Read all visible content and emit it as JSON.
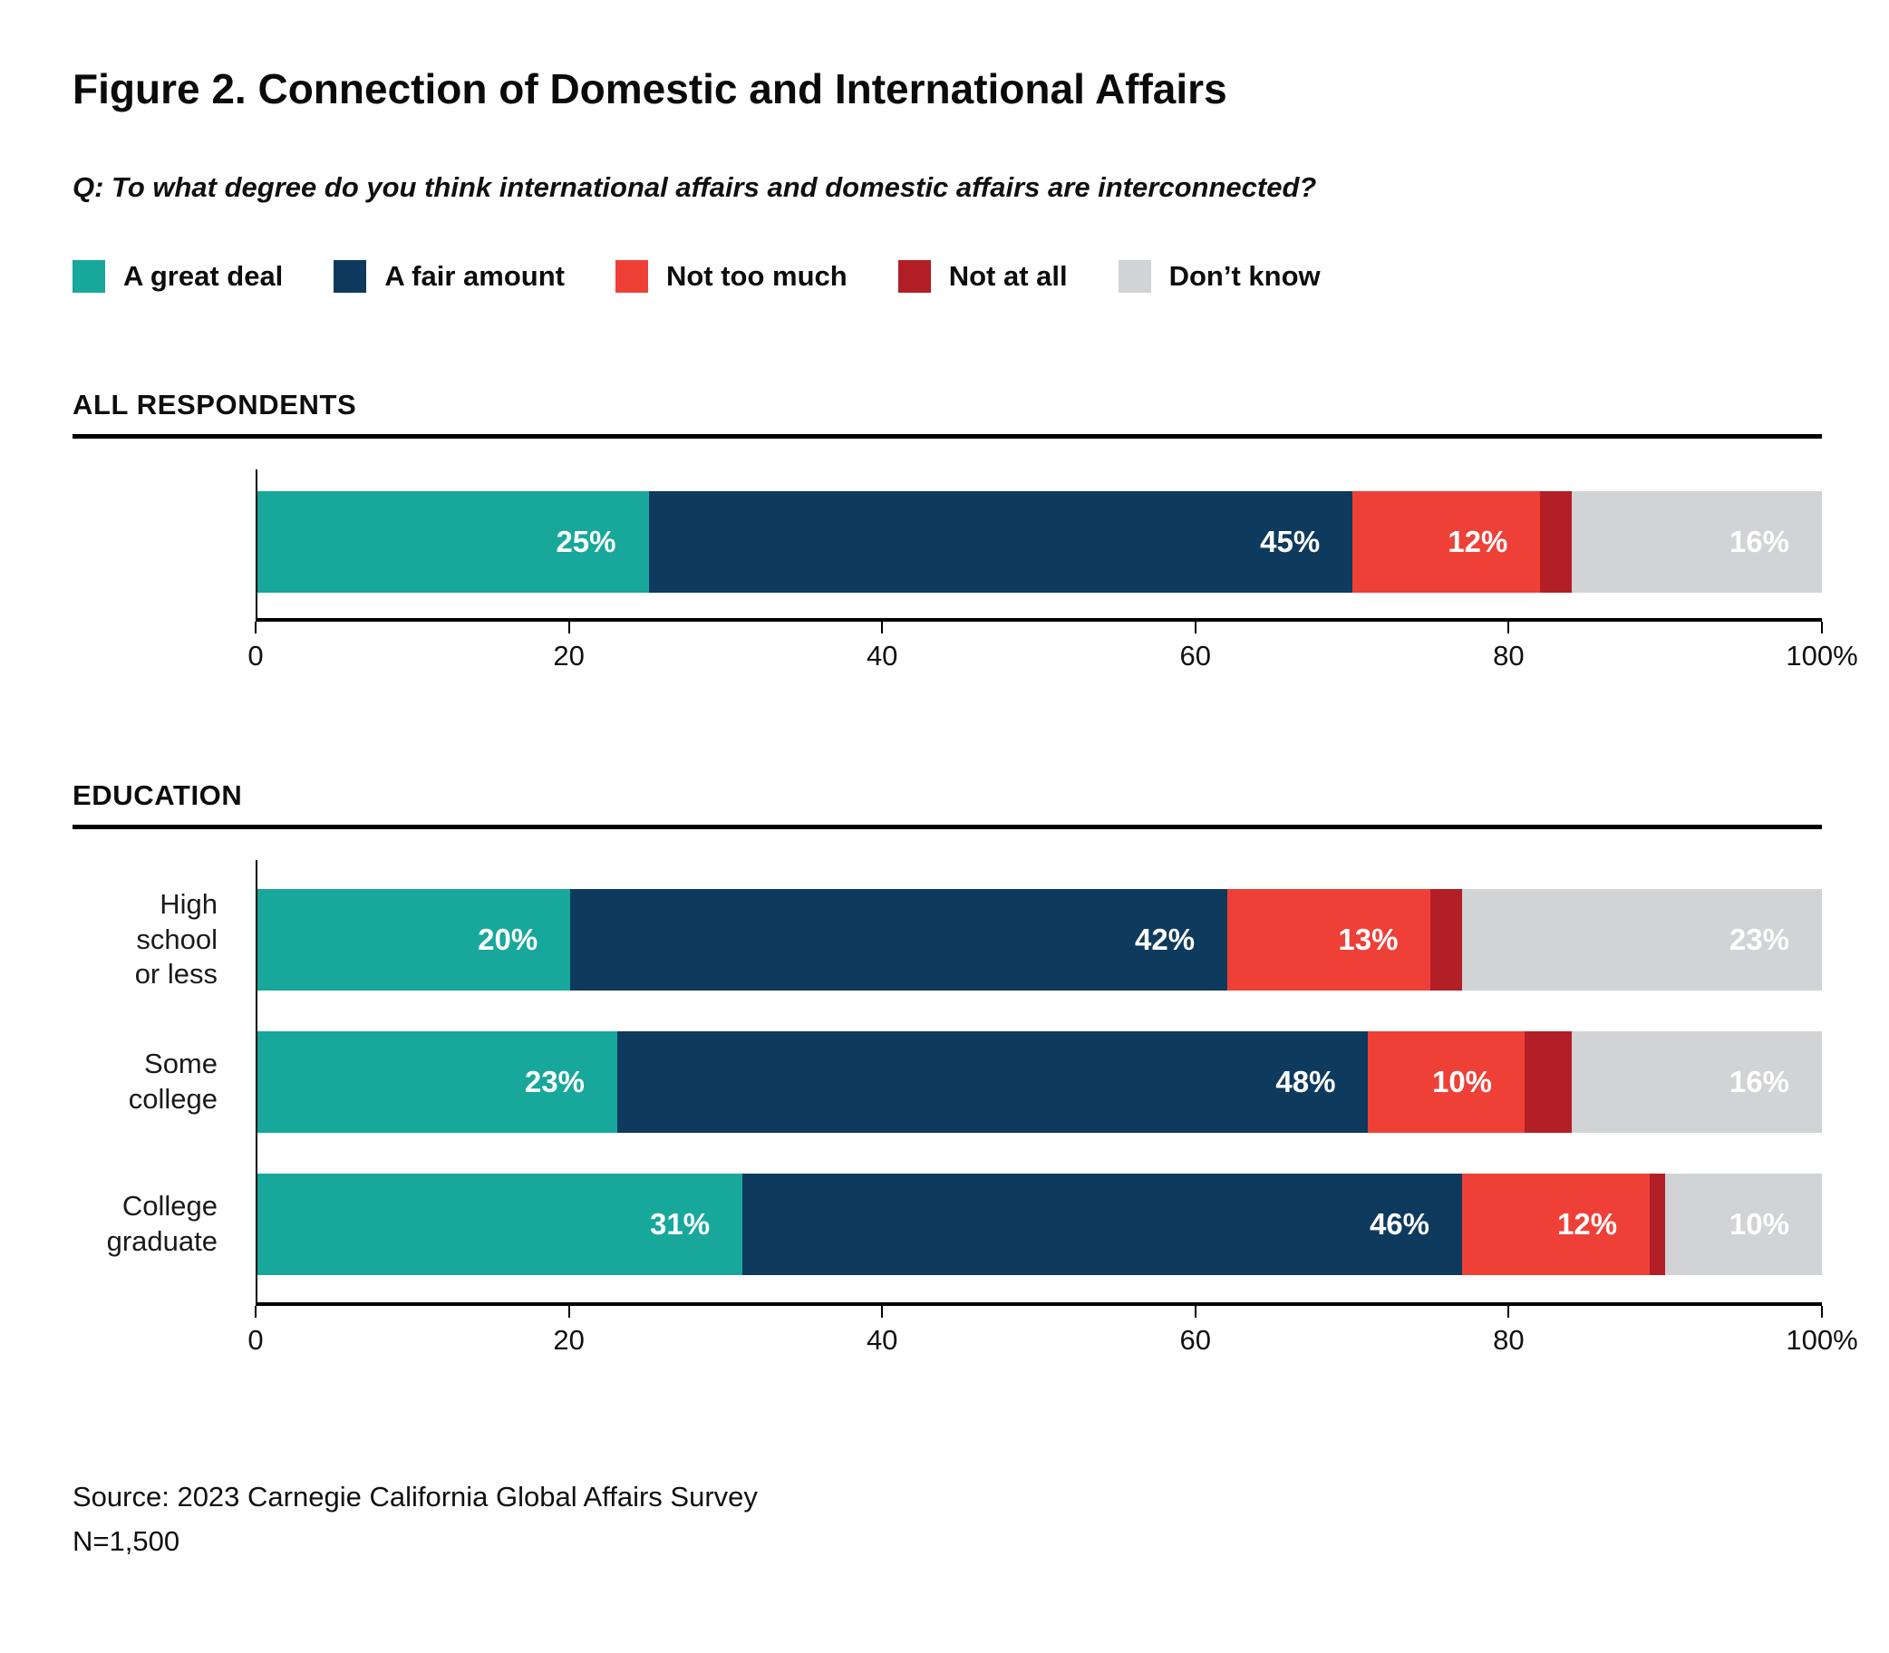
{
  "title": "Figure 2. Connection of Domestic and International Affairs",
  "question": "Q: To what degree do you think international affairs and domestic affairs are interconnected?",
  "legend": [
    {
      "label": "A great deal",
      "color": "#18A79B"
    },
    {
      "label": "A fair amount",
      "color": "#0E3A5D"
    },
    {
      "label": "Not too much",
      "color": "#EF4038"
    },
    {
      "label": "Not at all",
      "color": "#B21F26"
    },
    {
      "label": "Don’t know",
      "color": "#D2D3D5"
    }
  ],
  "axis": {
    "ticks": [
      "0",
      "20",
      "40",
      "60",
      "80",
      "100%"
    ],
    "min": 0,
    "max": 100
  },
  "chart_data": [
    {
      "type": "bar",
      "stacked": true,
      "orientation": "horizontal",
      "section": "ALL RESPONDENTS",
      "categories": [
        [
          ""
        ]
      ],
      "series": [
        {
          "name": "A great deal",
          "values": [
            25
          ]
        },
        {
          "name": "A fair amount",
          "values": [
            45
          ]
        },
        {
          "name": "Not too much",
          "values": [
            12
          ]
        },
        {
          "name": "Not at all",
          "values": [
            2
          ]
        },
        {
          "name": "Don’t know",
          "values": [
            16
          ]
        }
      ],
      "xlim": [
        0,
        100
      ],
      "value_suffix": "%"
    },
    {
      "type": "bar",
      "stacked": true,
      "orientation": "horizontal",
      "section": "EDUCATION",
      "categories": [
        [
          "High school",
          "or less"
        ],
        [
          "Some college"
        ],
        [
          "College",
          "graduate"
        ]
      ],
      "series": [
        {
          "name": "A great deal",
          "values": [
            20,
            23,
            31
          ]
        },
        {
          "name": "A fair amount",
          "values": [
            42,
            48,
            46
          ]
        },
        {
          "name": "Not too much",
          "values": [
            13,
            10,
            12
          ]
        },
        {
          "name": "Not at all",
          "values": [
            2,
            3,
            1
          ]
        },
        {
          "name": "Don’t know",
          "values": [
            23,
            16,
            10
          ]
        }
      ],
      "xlim": [
        0,
        100
      ],
      "value_suffix": "%"
    }
  ],
  "source_line1": "Source: 2023 Carnegie California Global Affairs Survey",
  "source_line2": "N=1,500"
}
